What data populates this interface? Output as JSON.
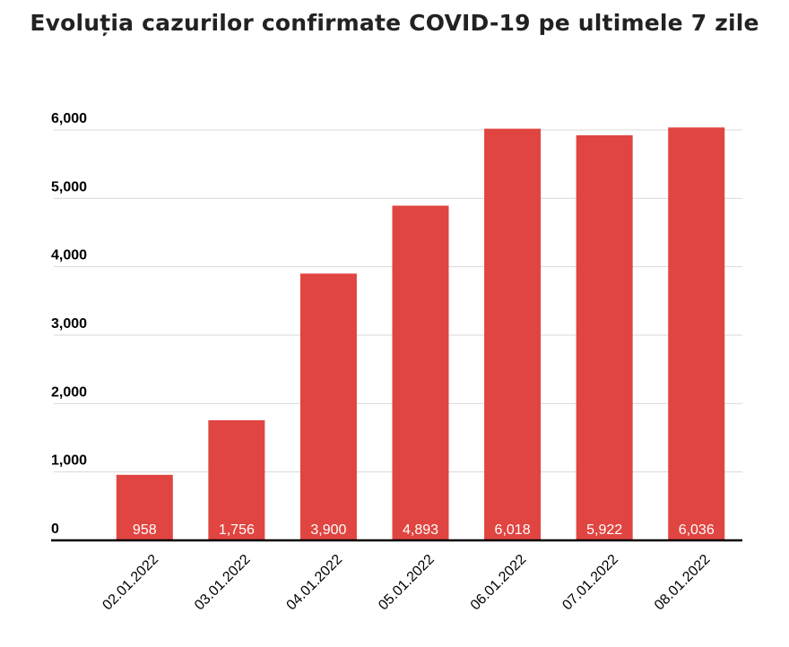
{
  "chart_data": {
    "type": "bar",
    "title": "Evoluția cazurilor confirmate COVID-19 pe ultimele 7 zile",
    "categories": [
      "02.01.2022",
      "03.01.2022",
      "04.01.2022",
      "05.01.2022",
      "06.01.2022",
      "07.01.2022",
      "08.01.2022"
    ],
    "values": [
      958,
      1756,
      3900,
      4893,
      6018,
      5922,
      6036
    ],
    "value_labels": [
      "958",
      "1,756",
      "3,900",
      "4,893",
      "6,018",
      "5,922",
      "6,036"
    ],
    "y_ticks": [
      0,
      1000,
      2000,
      3000,
      4000,
      5000,
      6000
    ],
    "y_tick_labels": [
      "0",
      "1,000",
      "2,000",
      "3,000",
      "4,000",
      "5,000",
      "6,000"
    ],
    "ylim": [
      0,
      6000
    ],
    "xlabel": "",
    "ylabel": "",
    "grid": true,
    "legend": "none",
    "colors": {
      "bar": "#e04541",
      "grid": "#d9d9d9",
      "axis": "#000000"
    }
  }
}
